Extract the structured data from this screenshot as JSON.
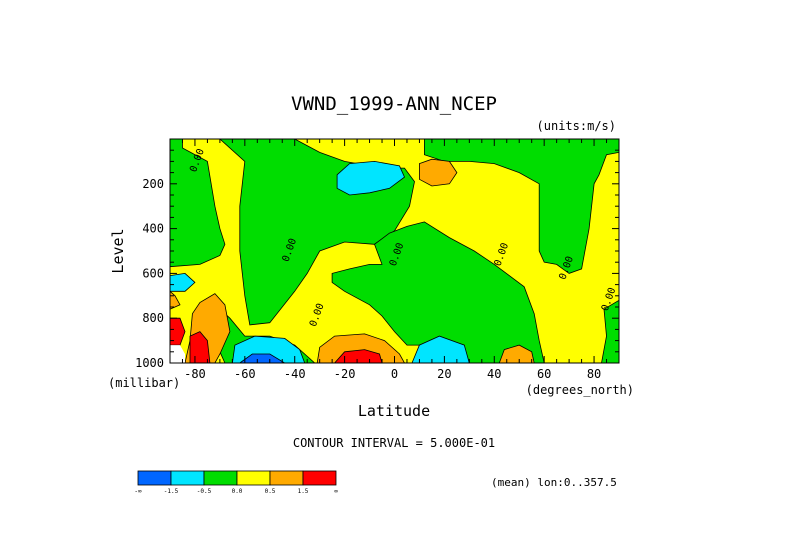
{
  "chart_data": {
    "type": "heatmap",
    "title": "VWND_1999-ANN_NCEP",
    "units_label": "(units:m/s)",
    "xlabel": "Latitude",
    "x_units": "(degrees_north)",
    "ylabel": "Level",
    "y_units": "(millibar)",
    "xlim": [
      -90,
      90
    ],
    "ylim": [
      1000,
      0
    ],
    "y_inverted": true,
    "x_ticks": [
      {
        "value": -80,
        "label": "-80"
      },
      {
        "value": -60,
        "label": "-60"
      },
      {
        "value": -40,
        "label": "-40"
      },
      {
        "value": -20,
        "label": "-20"
      },
      {
        "value": 0,
        "label": "0"
      },
      {
        "value": 20,
        "label": "20"
      },
      {
        "value": 40,
        "label": "40"
      },
      {
        "value": 60,
        "label": "60"
      },
      {
        "value": 80,
        "label": "80"
      }
    ],
    "y_ticks": [
      {
        "value": 200,
        "label": "200"
      },
      {
        "value": 400,
        "label": "400"
      },
      {
        "value": 600,
        "label": "600"
      },
      {
        "value": 800,
        "label": "800"
      },
      {
        "value": 1000,
        "label": "1000"
      }
    ],
    "contour_interval_label": "CONTOUR INTERVAL = 5.000E-01",
    "annotation": "(mean) lon:0..357.5",
    "zero_contour_label": "0.00",
    "colorbar": {
      "colors": [
        "#0066ff",
        "#00e5ff",
        "#00dd00",
        "#ffff00",
        "#ffaa00",
        "#ff0000"
      ],
      "labels": [
        "-∞",
        "-1.5",
        "-0.5",
        "0.0",
        "0.5",
        "1.5",
        "∞"
      ]
    },
    "background_color": "#ffff00",
    "regions": [
      {
        "level": 2,
        "label": "green",
        "poly": [
          [
            -90,
            0
          ],
          [
            -90,
            570
          ],
          [
            -78,
            560
          ],
          [
            -70,
            520
          ],
          [
            -68,
            470
          ],
          [
            -70,
            400
          ],
          [
            -72,
            300
          ],
          [
            -75,
            100
          ],
          [
            -85,
            40
          ],
          [
            -85,
            0
          ]
        ]
      },
      {
        "level": 2,
        "label": "green",
        "poly": [
          [
            -60,
            100
          ],
          [
            -70,
            0
          ],
          [
            -40,
            0
          ],
          [
            -30,
            60
          ],
          [
            -20,
            100
          ],
          [
            -10,
            120
          ],
          [
            -2,
            130
          ],
          [
            4,
            130
          ],
          [
            8,
            190
          ],
          [
            6,
            300
          ],
          [
            0,
            410
          ],
          [
            -8,
            470
          ],
          [
            -20,
            460
          ],
          [
            -30,
            500
          ],
          [
            -35,
            600
          ],
          [
            -40,
            680
          ],
          [
            -50,
            820
          ],
          [
            -58,
            830
          ],
          [
            -60,
            700
          ],
          [
            -62,
            500
          ],
          [
            -62,
            300
          ]
        ]
      },
      {
        "level": 2,
        "label": "green",
        "poly": [
          [
            12,
            70
          ],
          [
            12,
            0
          ],
          [
            90,
            0
          ],
          [
            90,
            60
          ],
          [
            85,
            70
          ],
          [
            82,
            160
          ],
          [
            80,
            200
          ],
          [
            78,
            400
          ],
          [
            75,
            580
          ],
          [
            70,
            600
          ],
          [
            65,
            560
          ],
          [
            60,
            550
          ],
          [
            58,
            500
          ],
          [
            58,
            300
          ],
          [
            58,
            200
          ],
          [
            50,
            150
          ],
          [
            40,
            110
          ],
          [
            30,
            100
          ],
          [
            20,
            100
          ]
        ]
      },
      {
        "level": 2,
        "label": "green",
        "poly": [
          [
            -2,
            420
          ],
          [
            5,
            390
          ],
          [
            12,
            370
          ],
          [
            22,
            440
          ],
          [
            32,
            500
          ],
          [
            40,
            560
          ],
          [
            52,
            660
          ],
          [
            56,
            780
          ],
          [
            58,
            900
          ],
          [
            60,
            1000
          ],
          [
            20,
            1000
          ],
          [
            15,
            920
          ],
          [
            5,
            920
          ],
          [
            0,
            860
          ],
          [
            -5,
            790
          ],
          [
            -10,
            740
          ],
          [
            -20,
            680
          ],
          [
            -25,
            640
          ],
          [
            -25,
            600
          ],
          [
            -18,
            580
          ],
          [
            -10,
            560
          ],
          [
            -5,
            560
          ],
          [
            -8,
            470
          ]
        ]
      },
      {
        "level": 2,
        "label": "green",
        "poly": [
          [
            84,
            760
          ],
          [
            90,
            720
          ],
          [
            90,
            1000
          ],
          [
            83,
            1000
          ],
          [
            85,
            880
          ]
        ]
      },
      {
        "level": 2,
        "label": "green",
        "poly": [
          [
            -68,
            1000
          ],
          [
            -72,
            900
          ],
          [
            -76,
            860
          ],
          [
            -74,
            800
          ],
          [
            -70,
            760
          ],
          [
            -66,
            800
          ],
          [
            -60,
            880
          ],
          [
            -50,
            880
          ],
          [
            -40,
            920
          ],
          [
            -32,
            1000
          ]
        ]
      },
      {
        "level": 1,
        "label": "cyan",
        "poly": [
          [
            -18,
            110
          ],
          [
            -8,
            100
          ],
          [
            2,
            120
          ],
          [
            4,
            170
          ],
          [
            -2,
            220
          ],
          [
            -10,
            240
          ],
          [
            -18,
            250
          ],
          [
            -23,
            220
          ],
          [
            -23,
            160
          ]
        ]
      },
      {
        "level": 1,
        "label": "cyan",
        "poly": [
          [
            -90,
            610
          ],
          [
            -84,
            600
          ],
          [
            -80,
            640
          ],
          [
            -84,
            680
          ],
          [
            -90,
            680
          ]
        ]
      },
      {
        "level": 1,
        "label": "cyan",
        "poly": [
          [
            -65,
            1000
          ],
          [
            -64,
            920
          ],
          [
            -56,
            880
          ],
          [
            -44,
            890
          ],
          [
            -38,
            940
          ],
          [
            -36,
            1000
          ]
        ]
      },
      {
        "level": 1,
        "label": "cyan",
        "poly": [
          [
            7,
            1000
          ],
          [
            10,
            920
          ],
          [
            18,
            880
          ],
          [
            28,
            920
          ],
          [
            30,
            1000
          ]
        ]
      },
      {
        "level": 0,
        "label": "blue",
        "poly": [
          [
            -62,
            1000
          ],
          [
            -57,
            960
          ],
          [
            -50,
            960
          ],
          [
            -44,
            1000
          ]
        ]
      },
      {
        "level": 4,
        "label": "orange",
        "poly": [
          [
            -81,
            780
          ],
          [
            -78,
            730
          ],
          [
            -72,
            690
          ],
          [
            -68,
            740
          ],
          [
            -66,
            860
          ],
          [
            -70,
            960
          ],
          [
            -72,
            1000
          ],
          [
            -84,
            1000
          ],
          [
            -82,
            900
          ]
        ]
      },
      {
        "level": 4,
        "label": "orange",
        "poly": [
          [
            -31,
            1000
          ],
          [
            -30,
            930
          ],
          [
            -24,
            880
          ],
          [
            -12,
            870
          ],
          [
            -4,
            900
          ],
          [
            2,
            960
          ],
          [
            4,
            1000
          ]
        ]
      },
      {
        "level": 4,
        "label": "orange",
        "poly": [
          [
            10,
            110
          ],
          [
            15,
            90
          ],
          [
            22,
            100
          ],
          [
            25,
            150
          ],
          [
            22,
            200
          ],
          [
            15,
            210
          ],
          [
            10,
            180
          ]
        ]
      },
      {
        "level": 4,
        "label": "orange",
        "poly": [
          [
            -90,
            680
          ],
          [
            -88,
            700
          ],
          [
            -86,
            740
          ],
          [
            -90,
            760
          ]
        ]
      },
      {
        "level": 4,
        "label": "orange",
        "poly": [
          [
            42,
            1000
          ],
          [
            44,
            940
          ],
          [
            50,
            920
          ],
          [
            55,
            950
          ],
          [
            56,
            1000
          ]
        ]
      },
      {
        "level": 5,
        "label": "red",
        "poly": [
          [
            -24,
            1000
          ],
          [
            -20,
            950
          ],
          [
            -12,
            940
          ],
          [
            -6,
            960
          ],
          [
            -5,
            1000
          ]
        ]
      },
      {
        "level": 5,
        "label": "red",
        "poly": [
          [
            -82,
            880
          ],
          [
            -78,
            860
          ],
          [
            -75,
            900
          ],
          [
            -74,
            1000
          ],
          [
            -82,
            1000
          ]
        ]
      },
      {
        "level": 5,
        "label": "red",
        "poly": [
          [
            -90,
            800
          ],
          [
            -86,
            800
          ],
          [
            -84,
            860
          ],
          [
            -86,
            920
          ],
          [
            -90,
            920
          ]
        ]
      }
    ],
    "blank_regions": [
      {
        "poly": [
          [
            -90,
            920
          ],
          [
            -86,
            920
          ],
          [
            -84,
            960
          ],
          [
            -84,
            1000
          ],
          [
            -90,
            1000
          ]
        ]
      }
    ],
    "zero_contour_labels": [
      {
        "x": -78,
        "y": 100
      },
      {
        "x": -41,
        "y": 500
      },
      {
        "x": 2,
        "y": 520
      },
      {
        "x": 44,
        "y": 520
      },
      {
        "x": 70,
        "y": 580
      },
      {
        "x": -30,
        "y": 790
      },
      {
        "x": 87,
        "y": 720
      }
    ]
  }
}
